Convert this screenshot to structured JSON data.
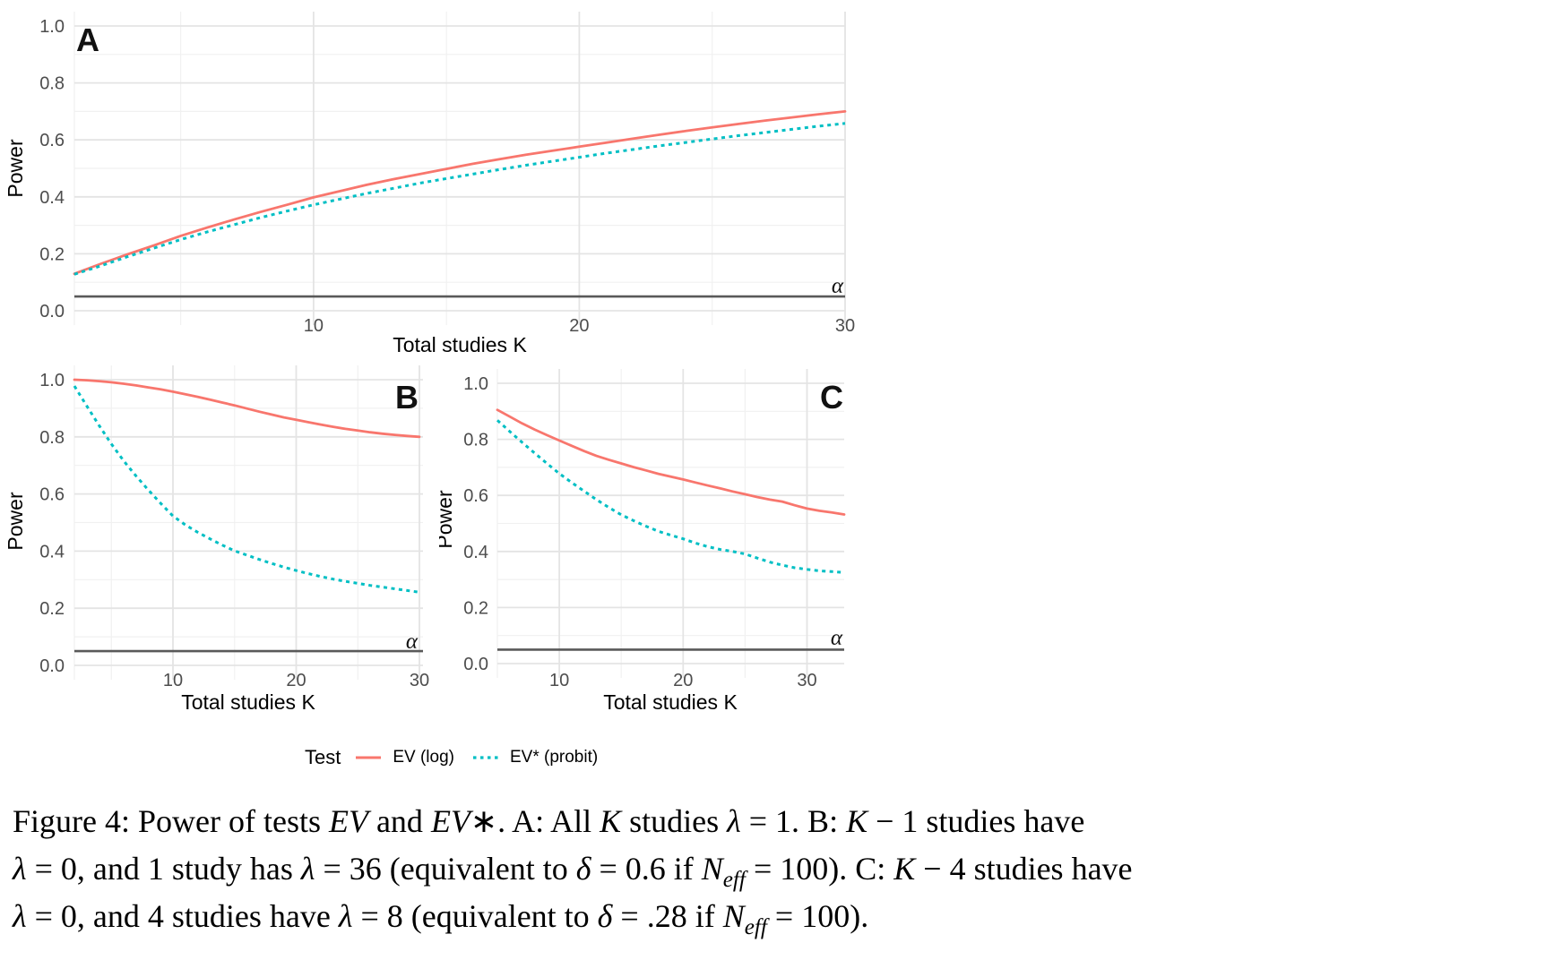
{
  "figure": {
    "legend": {
      "title": "Test",
      "items": [
        {
          "label": "EV (log)",
          "color": "#F8766D",
          "style": "solid"
        },
        {
          "label": "EV* (probit)",
          "color": "#00BFC4",
          "style": "dotted"
        }
      ]
    },
    "caption_lines": [
      [
        {
          "t": "Figure 4: Power of tests "
        },
        {
          "t": "EV",
          "i": 1
        },
        {
          "t": " and "
        },
        {
          "t": "EV",
          "i": 1
        },
        {
          "t": "∗.  A: All "
        },
        {
          "t": "K",
          "i": 1
        },
        {
          "t": " studies "
        },
        {
          "t": "λ",
          "i": 1
        },
        {
          "t": " = 1.  B: "
        },
        {
          "t": "K",
          "i": 1
        },
        {
          "t": " − 1 studies have"
        }
      ],
      [
        {
          "t": "λ",
          "i": 1
        },
        {
          "t": " = 0, and 1 study has "
        },
        {
          "t": "λ",
          "i": 1
        },
        {
          "t": " = 36 (equivalent to "
        },
        {
          "t": "δ",
          "i": 1
        },
        {
          "t": " = 0.6 if "
        },
        {
          "t": "N",
          "i": 1
        },
        {
          "t": "eff",
          "i": 1,
          "sub": 1
        },
        {
          "t": " = 100).  C: "
        },
        {
          "t": "K",
          "i": 1
        },
        {
          "t": " − 4 studies have"
        }
      ],
      [
        {
          "t": "λ",
          "i": 1
        },
        {
          "t": " = 0, and 4 studies have "
        },
        {
          "t": "λ",
          "i": 1
        },
        {
          "t": " = 8 (equivalent to "
        },
        {
          "t": "δ",
          "i": 1
        },
        {
          "t": " = .28 if "
        },
        {
          "t": "N",
          "i": 1
        },
        {
          "t": "eff",
          "i": 1,
          "sub": 1
        },
        {
          "t": " = 100)."
        }
      ]
    ]
  },
  "colors": {
    "ev_log": "#F8766D",
    "ev_probit": "#00BFC4",
    "alpha_line": "#595959",
    "grid_major": "#E4E4E4",
    "grid_minor": "#F1F1F1",
    "tick_text": "#4D4D4D",
    "text": "#000000"
  },
  "chart_data": [
    {
      "id": "A",
      "type": "line",
      "panel_tag": "A",
      "xlabel": "Total studies K",
      "ylabel": "Power",
      "x_domain": [
        1,
        30
      ],
      "y_domain": [
        0,
        1
      ],
      "x_ticks": [
        10,
        20,
        30
      ],
      "x_minor_ticks": [
        5,
        15,
        25
      ],
      "y_ticks": [
        0.0,
        0.2,
        0.4,
        0.6,
        0.8,
        1.0
      ],
      "y_tick_labels": [
        "0.0",
        "0.2",
        "0.4",
        "0.6",
        "0.8",
        "1.0"
      ],
      "y_minor_ticks": [
        0.1,
        0.3,
        0.5,
        0.7,
        0.9
      ],
      "grid": true,
      "legend_position": "bottom-shared",
      "alpha_line": {
        "value": 0.05,
        "label": "α"
      },
      "series": [
        {
          "name": "EV (log)",
          "style": "solid",
          "color": "#F8766D",
          "points": [
            [
              1,
              0.13
            ],
            [
              2,
              0.165
            ],
            [
              3,
              0.198
            ],
            [
              4,
              0.23
            ],
            [
              5,
              0.263
            ],
            [
              6,
              0.292
            ],
            [
              7,
              0.32
            ],
            [
              8,
              0.347
            ],
            [
              9,
              0.372
            ],
            [
              10,
              0.398
            ],
            [
              11,
              0.42
            ],
            [
              12,
              0.442
            ],
            [
              13,
              0.462
            ],
            [
              14,
              0.48
            ],
            [
              15,
              0.498
            ],
            [
              16,
              0.516
            ],
            [
              17,
              0.532
            ],
            [
              18,
              0.548
            ],
            [
              19,
              0.562
            ],
            [
              20,
              0.576
            ],
            [
              21,
              0.59
            ],
            [
              22,
              0.604
            ],
            [
              23,
              0.618
            ],
            [
              24,
              0.631
            ],
            [
              25,
              0.644
            ],
            [
              26,
              0.656
            ],
            [
              27,
              0.668
            ],
            [
              28,
              0.679
            ],
            [
              29,
              0.69
            ],
            [
              30,
              0.7
            ]
          ]
        },
        {
          "name": "EV* (probit)",
          "style": "dotted",
          "color": "#00BFC4",
          "points": [
            [
              1,
              0.128
            ],
            [
              2,
              0.158
            ],
            [
              3,
              0.19
            ],
            [
              4,
              0.22
            ],
            [
              5,
              0.25
            ],
            [
              6,
              0.277
            ],
            [
              7,
              0.302
            ],
            [
              8,
              0.327
            ],
            [
              9,
              0.35
            ],
            [
              10,
              0.372
            ],
            [
              11,
              0.392
            ],
            [
              12,
              0.412
            ],
            [
              13,
              0.43
            ],
            [
              14,
              0.448
            ],
            [
              15,
              0.464
            ],
            [
              16,
              0.48
            ],
            [
              17,
              0.496
            ],
            [
              18,
              0.511
            ],
            [
              19,
              0.525
            ],
            [
              20,
              0.539
            ],
            [
              21,
              0.553
            ],
            [
              22,
              0.566
            ],
            [
              23,
              0.579
            ],
            [
              24,
              0.591
            ],
            [
              25,
              0.603
            ],
            [
              26,
              0.615
            ],
            [
              27,
              0.626
            ],
            [
              28,
              0.637
            ],
            [
              29,
              0.648
            ],
            [
              30,
              0.658
            ]
          ]
        }
      ]
    },
    {
      "id": "B",
      "type": "line",
      "panel_tag": "B",
      "xlabel": "Total studies K",
      "ylabel": "Power",
      "x_domain": [
        2,
        30
      ],
      "y_domain": [
        0,
        1
      ],
      "x_ticks": [
        10,
        20,
        30
      ],
      "x_minor_ticks": [
        5,
        15,
        25
      ],
      "y_ticks": [
        0.0,
        0.2,
        0.4,
        0.6,
        0.8,
        1.0
      ],
      "y_tick_labels": [
        "0.0",
        "0.2",
        "0.4",
        "0.6",
        "0.8",
        "1.0"
      ],
      "y_minor_ticks": [
        0.1,
        0.3,
        0.5,
        0.7,
        0.9
      ],
      "grid": true,
      "legend_position": "bottom-shared",
      "alpha_line": {
        "value": 0.05,
        "label": "α"
      },
      "series": [
        {
          "name": "EV (log)",
          "style": "solid",
          "color": "#F8766D",
          "points": [
            [
              2,
              1.0
            ],
            [
              3,
              0.998
            ],
            [
              4,
              0.995
            ],
            [
              5,
              0.991
            ],
            [
              6,
              0.986
            ],
            [
              7,
              0.98
            ],
            [
              8,
              0.973
            ],
            [
              9,
              0.966
            ],
            [
              10,
              0.958
            ],
            [
              11,
              0.949
            ],
            [
              12,
              0.94
            ],
            [
              13,
              0.93
            ],
            [
              14,
              0.92
            ],
            [
              15,
              0.91
            ],
            [
              16,
              0.899
            ],
            [
              17,
              0.888
            ],
            [
              18,
              0.878
            ],
            [
              19,
              0.868
            ],
            [
              20,
              0.86
            ],
            [
              21,
              0.851
            ],
            [
              22,
              0.843
            ],
            [
              23,
              0.835
            ],
            [
              24,
              0.828
            ],
            [
              25,
              0.822
            ],
            [
              26,
              0.816
            ],
            [
              27,
              0.811
            ],
            [
              28,
              0.807
            ],
            [
              29,
              0.803
            ],
            [
              30,
              0.8
            ]
          ]
        },
        {
          "name": "EV* (probit)",
          "style": "dotted",
          "color": "#00BFC4",
          "points": [
            [
              2,
              0.978
            ],
            [
              3,
              0.908
            ],
            [
              4,
              0.84
            ],
            [
              5,
              0.775
            ],
            [
              6,
              0.716
            ],
            [
              7,
              0.663
            ],
            [
              8,
              0.614
            ],
            [
              9,
              0.567
            ],
            [
              10,
              0.523
            ],
            [
              11,
              0.492
            ],
            [
              12,
              0.466
            ],
            [
              13,
              0.443
            ],
            [
              14,
              0.421
            ],
            [
              15,
              0.401
            ],
            [
              16,
              0.386
            ],
            [
              17,
              0.371
            ],
            [
              18,
              0.357
            ],
            [
              19,
              0.344
            ],
            [
              20,
              0.332
            ],
            [
              21,
              0.321
            ],
            [
              22,
              0.311
            ],
            [
              23,
              0.302
            ],
            [
              24,
              0.294
            ],
            [
              25,
              0.287
            ],
            [
              26,
              0.28
            ],
            [
              27,
              0.274
            ],
            [
              28,
              0.268
            ],
            [
              29,
              0.262
            ],
            [
              30,
              0.256
            ]
          ]
        }
      ]
    },
    {
      "id": "C",
      "type": "line",
      "panel_tag": "C",
      "xlabel": "Total studies K",
      "ylabel": "Power",
      "x_domain": [
        5,
        33
      ],
      "y_domain": [
        0,
        1
      ],
      "x_ticks": [
        10,
        20,
        30
      ],
      "x_minor_ticks": [
        15,
        25
      ],
      "y_ticks": [
        0.0,
        0.2,
        0.4,
        0.6,
        0.8,
        1.0
      ],
      "y_tick_labels": [
        "0.0",
        "0.2",
        "0.4",
        "0.6",
        "0.8",
        "1.0"
      ],
      "y_minor_ticks": [
        0.1,
        0.3,
        0.5,
        0.7,
        0.9
      ],
      "grid": true,
      "legend_position": "bottom-shared",
      "alpha_line": {
        "value": 0.05,
        "label": "α"
      },
      "series": [
        {
          "name": "EV (log)",
          "style": "solid",
          "color": "#F8766D",
          "points": [
            [
              5,
              0.905
            ],
            [
              6,
              0.881
            ],
            [
              7,
              0.857
            ],
            [
              8,
              0.835
            ],
            [
              9,
              0.815
            ],
            [
              10,
              0.796
            ],
            [
              11,
              0.777
            ],
            [
              12,
              0.758
            ],
            [
              13,
              0.741
            ],
            [
              14,
              0.727
            ],
            [
              15,
              0.714
            ],
            [
              16,
              0.701
            ],
            [
              17,
              0.689
            ],
            [
              18,
              0.677
            ],
            [
              19,
              0.667
            ],
            [
              20,
              0.657
            ],
            [
              21,
              0.646
            ],
            [
              22,
              0.635
            ],
            [
              23,
              0.625
            ],
            [
              24,
              0.614
            ],
            [
              25,
              0.604
            ],
            [
              26,
              0.594
            ],
            [
              27,
              0.585
            ],
            [
              28,
              0.578
            ],
            [
              29,
              0.565
            ],
            [
              30,
              0.553
            ],
            [
              31,
              0.545
            ],
            [
              32,
              0.539
            ],
            [
              33,
              0.532
            ]
          ]
        },
        {
          "name": "EV* (probit)",
          "style": "dotted",
          "color": "#00BFC4",
          "points": [
            [
              5,
              0.868
            ],
            [
              6,
              0.828
            ],
            [
              7,
              0.789
            ],
            [
              8,
              0.751
            ],
            [
              9,
              0.714
            ],
            [
              10,
              0.678
            ],
            [
              11,
              0.646
            ],
            [
              12,
              0.615
            ],
            [
              13,
              0.585
            ],
            [
              14,
              0.557
            ],
            [
              15,
              0.531
            ],
            [
              16,
              0.51
            ],
            [
              17,
              0.49
            ],
            [
              18,
              0.472
            ],
            [
              19,
              0.458
            ],
            [
              20,
              0.445
            ],
            [
              21,
              0.43
            ],
            [
              22,
              0.417
            ],
            [
              23,
              0.407
            ],
            [
              24,
              0.4
            ],
            [
              25,
              0.391
            ],
            [
              26,
              0.376
            ],
            [
              27,
              0.362
            ],
            [
              28,
              0.351
            ],
            [
              29,
              0.342
            ],
            [
              30,
              0.336
            ],
            [
              31,
              0.331
            ],
            [
              32,
              0.328
            ],
            [
              33,
              0.325
            ]
          ]
        }
      ]
    }
  ]
}
